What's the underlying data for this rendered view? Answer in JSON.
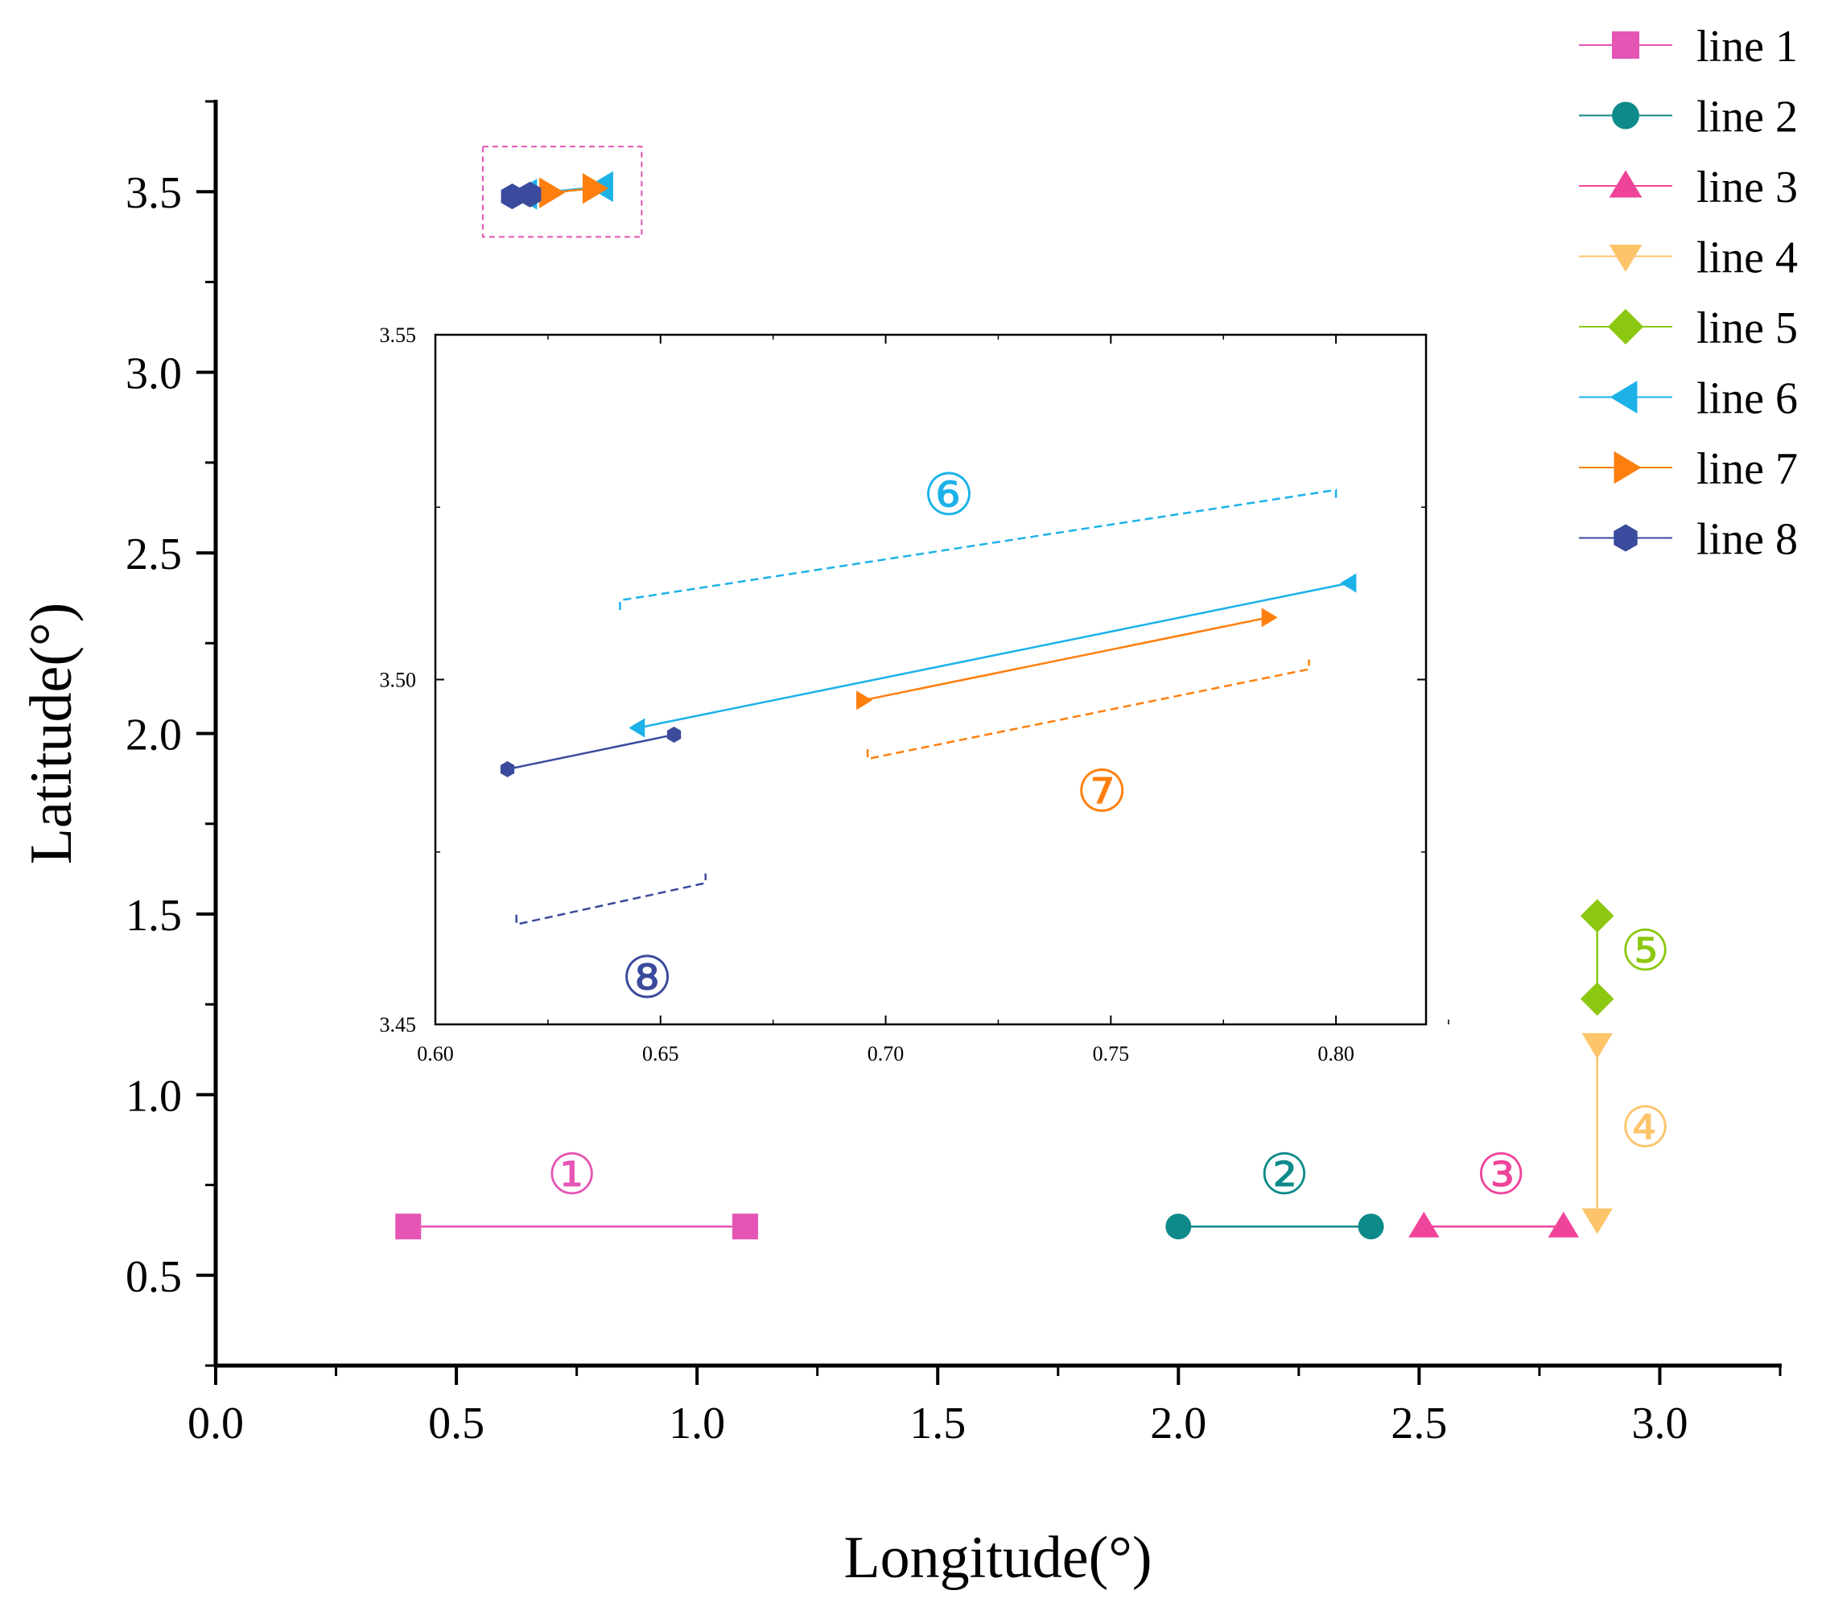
{
  "chart_data": [
    {
      "type": "line",
      "role": "main",
      "xlabel": "Longitude(°)",
      "ylabel": "Latitude(°)",
      "xlim": [
        0.0,
        3.25
      ],
      "ylim": [
        0.25,
        3.75
      ],
      "xticks": [
        0.0,
        0.5,
        1.0,
        1.5,
        2.0,
        2.5,
        3.0
      ],
      "xtick_labels": [
        "0.0",
        "0.5",
        "1.0",
        "1.5",
        "2.0",
        "2.5",
        "3.0"
      ],
      "yticks": [
        0.5,
        1.0,
        1.5,
        2.0,
        2.5,
        3.0,
        3.5
      ],
      "ytick_labels": [
        "0.5",
        "1.0",
        "1.5",
        "2.0",
        "2.5",
        "3.0",
        "3.5"
      ],
      "legend_position": "top-right",
      "series": [
        {
          "name": "line 1",
          "color": "#e555b5",
          "marker": "square",
          "x": [
            0.4,
            1.1
          ],
          "y": [
            0.635,
            0.635
          ],
          "tag": "①",
          "tag_at": [
            0.74,
            0.77
          ]
        },
        {
          "name": "line 2",
          "color": "#0e8a8a",
          "marker": "circle",
          "x": [
            2.0,
            2.4
          ],
          "y": [
            0.635,
            0.635
          ],
          "tag": "②",
          "tag_at": [
            2.22,
            0.77
          ]
        },
        {
          "name": "line 3",
          "color": "#f0449a",
          "marker": "triangle-up",
          "x": [
            2.51,
            2.8
          ],
          "y": [
            0.635,
            0.635
          ],
          "tag": "③",
          "tag_at": [
            2.67,
            0.77
          ]
        },
        {
          "name": "line 4",
          "color": "#fdc46a",
          "marker": "triangle-down",
          "x": [
            2.87,
            2.87
          ],
          "y": [
            0.655,
            1.14
          ],
          "tag": "④",
          "tag_at": [
            2.97,
            0.9
          ]
        },
        {
          "name": "line 5",
          "color": "#8cc812",
          "marker": "diamond",
          "x": [
            2.87,
            2.87
          ],
          "y": [
            1.265,
            1.495
          ],
          "tag": "⑤",
          "tag_at": [
            2.97,
            1.39
          ]
        },
        {
          "name": "line 6",
          "color": "#1cb2e8",
          "marker": "triangle-left",
          "x": [
            0.645,
            0.803
          ],
          "y": [
            3.493,
            3.514
          ]
        },
        {
          "name": "line 7",
          "color": "#ff7f0e",
          "marker": "triangle-right",
          "x": [
            0.695,
            0.785
          ],
          "y": [
            3.497,
            3.509
          ]
        },
        {
          "name": "line 8",
          "color": "#3a4a9c",
          "marker": "hexagon",
          "x": [
            0.616,
            0.653
          ],
          "y": [
            3.487,
            3.492
          ]
        }
      ]
    },
    {
      "type": "line",
      "role": "inset",
      "xlim": [
        0.6,
        0.82
      ],
      "ylim": [
        3.45,
        3.55
      ],
      "xticks": [
        0.6,
        0.65,
        0.7,
        0.75,
        0.8
      ],
      "xtick_labels": [
        "0.60",
        "0.65",
        "0.70",
        "0.75",
        "0.80"
      ],
      "yticks": [
        3.45,
        3.5,
        3.55
      ],
      "ytick_labels": [
        "3.45",
        "3.50",
        "3.55"
      ],
      "series": [
        {
          "name": "line 6",
          "color": "#1cb2e8",
          "marker": "triangle-left",
          "x": [
            0.645,
            0.803
          ],
          "y": [
            3.493,
            3.514
          ]
        },
        {
          "name": "line 7",
          "color": "#ff7f0e",
          "marker": "triangle-right",
          "x": [
            0.695,
            0.785
          ],
          "y": [
            3.497,
            3.509
          ]
        },
        {
          "name": "line 8",
          "color": "#3a4a9c",
          "marker": "hexagon",
          "x": [
            0.616,
            0.653
          ],
          "y": [
            3.487,
            3.492
          ]
        }
      ],
      "brackets": [
        {
          "series": "line 6",
          "color": "#1cb2e8",
          "tag": "⑥",
          "from": [
            0.641,
            3.5115
          ],
          "to": [
            0.8,
            3.5275
          ],
          "open": "down",
          "tag_at": [
            0.714,
            3.5265
          ]
        },
        {
          "series": "line 7",
          "color": "#ff7f0e",
          "tag": "⑦",
          "from": [
            0.696,
            3.4885
          ],
          "to": [
            0.794,
            3.5015
          ],
          "open": "up",
          "tag_at": [
            0.748,
            3.4835
          ]
        },
        {
          "series": "line 8",
          "color": "#3a4a9c",
          "tag": "⑧",
          "from": [
            0.618,
            3.4645
          ],
          "to": [
            0.66,
            3.4705
          ],
          "open": "up",
          "tag_at": [
            0.647,
            3.4565
          ]
        }
      ]
    }
  ]
}
